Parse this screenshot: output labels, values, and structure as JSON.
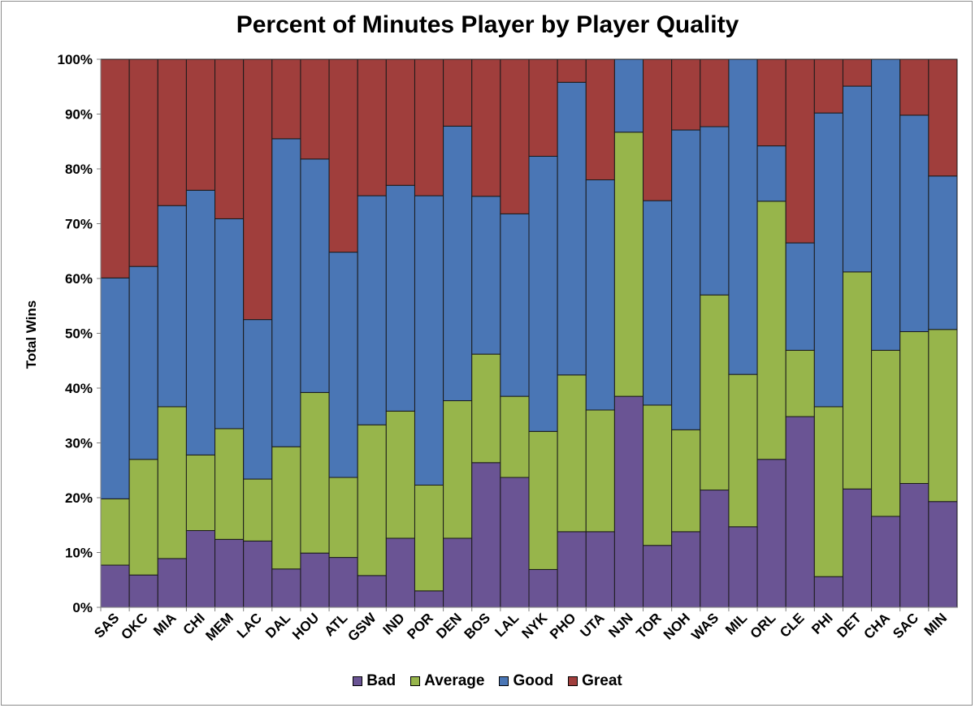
{
  "chart_data": {
    "type": "bar",
    "stacked": true,
    "title": "Percent of Minutes Player by Player Quality",
    "xlabel": "",
    "ylabel": "Total Wins",
    "ylim": [
      0,
      100
    ],
    "ytick_labels": [
      "0%",
      "10%",
      "20%",
      "30%",
      "40%",
      "50%",
      "60%",
      "70%",
      "80%",
      "90%",
      "100%"
    ],
    "grid": false,
    "legend_position": "bottom",
    "categories": [
      "SAS",
      "OKC",
      "MIA",
      "CHI",
      "MEM",
      "LAC",
      "DAL",
      "HOU",
      "ATL",
      "GSW",
      "IND",
      "POR",
      "DEN",
      "BOS",
      "LAL",
      "NYK",
      "PHO",
      "UTA",
      "NJN",
      "TOR",
      "NOH",
      "WAS",
      "MIL",
      "ORL",
      "CLE",
      "PHI",
      "DET",
      "CHA",
      "SAC",
      "MIN"
    ],
    "series": [
      {
        "name": "Bad",
        "color": "#6a5494",
        "values": [
          7.7,
          5.9,
          8.9,
          14.0,
          12.4,
          12.1,
          7.0,
          9.9,
          9.1,
          5.8,
          12.6,
          3.0,
          12.6,
          26.4,
          23.7,
          6.9,
          13.8,
          13.8,
          38.5,
          11.3,
          13.8,
          21.4,
          14.7,
          27.0,
          34.8,
          5.6,
          21.6,
          16.6,
          22.6,
          19.3
        ]
      },
      {
        "name": "Average",
        "color": "#97b54b",
        "values": [
          12.1,
          21.1,
          27.7,
          13.8,
          20.2,
          11.3,
          22.3,
          29.3,
          14.6,
          27.5,
          23.2,
          19.3,
          25.1,
          19.8,
          14.8,
          25.2,
          28.6,
          22.2,
          48.2,
          25.6,
          18.6,
          35.6,
          27.8,
          47.1,
          12.1,
          31.0,
          39.6,
          30.3,
          27.7,
          31.4
        ]
      },
      {
        "name": "Good",
        "color": "#4a76b5",
        "values": [
          40.3,
          35.2,
          36.7,
          48.3,
          38.3,
          29.1,
          56.2,
          42.6,
          41.1,
          41.8,
          41.2,
          52.8,
          50.1,
          28.8,
          33.3,
          50.2,
          53.4,
          42.0,
          13.3,
          37.3,
          54.7,
          30.7,
          57.5,
          10.1,
          19.6,
          53.6,
          33.9,
          53.1,
          39.5,
          28.0
        ]
      },
      {
        "name": "Great",
        "color": "#a03e3c",
        "values": [
          39.9,
          37.8,
          26.7,
          23.9,
          29.1,
          47.5,
          14.5,
          18.2,
          35.2,
          24.9,
          23.0,
          24.9,
          12.2,
          25.0,
          28.2,
          17.7,
          4.2,
          22.0,
          0.0,
          25.8,
          12.9,
          12.3,
          0.0,
          15.8,
          33.5,
          9.8,
          4.9,
          0.0,
          10.2,
          21.3
        ]
      }
    ]
  }
}
